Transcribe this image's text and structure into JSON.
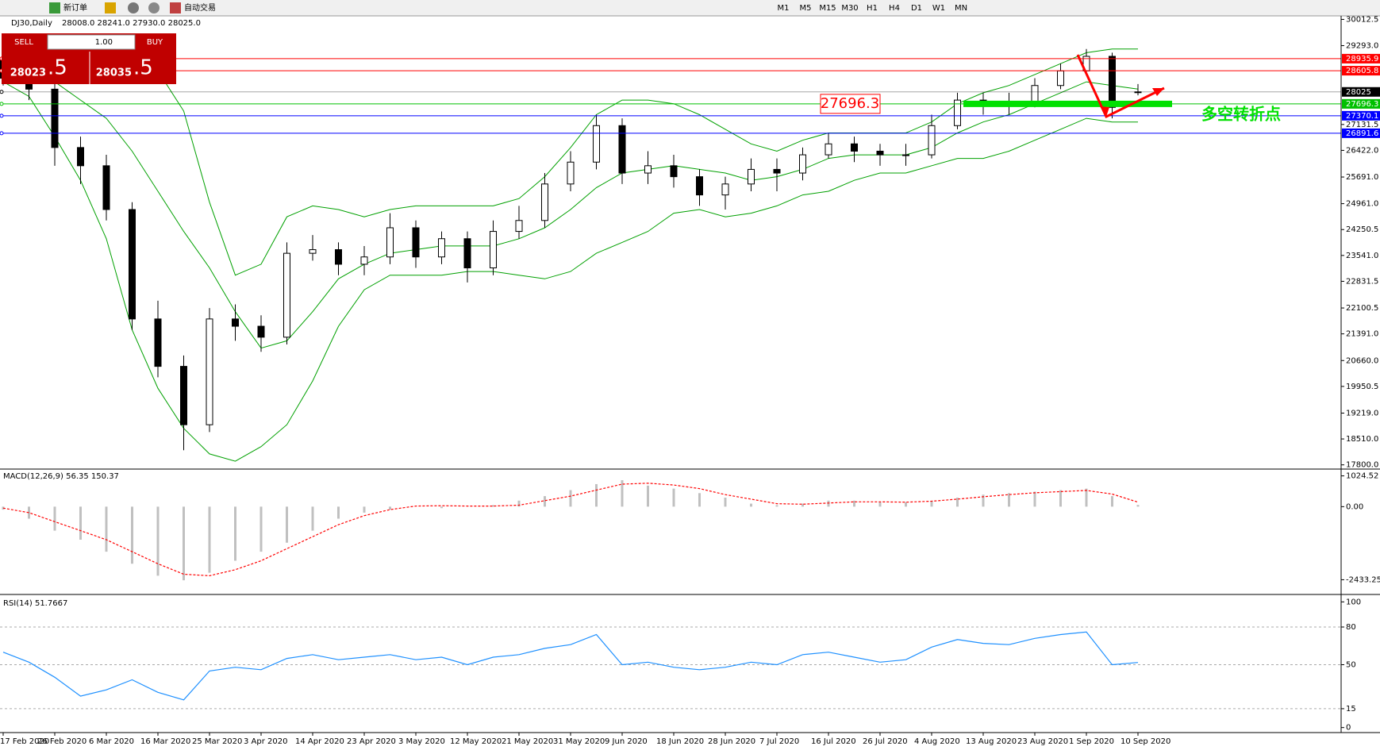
{
  "toolbar": {
    "new_order": "新订单",
    "auto_trading": "自动交易",
    "timeframes": [
      "M1",
      "M5",
      "M15",
      "M30",
      "H1",
      "H4",
      "D1",
      "W1",
      "MN"
    ]
  },
  "trade_panel": {
    "sell": "SELL",
    "buy": "BUY",
    "lots": "1.00",
    "sell_main": "28023",
    "sell_frac": ".5",
    "buy_main": "28035",
    "buy_frac": ".5"
  },
  "chart_data": [
    {
      "type": "candlestick",
      "title": "DJ30,Daily",
      "quote": "28008.0 28241.0 27930.0 28025.0",
      "categories": [
        "17 Feb 2020",
        null,
        "26 Feb 2020",
        null,
        "6 Mar 2020",
        null,
        "16 Mar 2020",
        null,
        "25 Mar 2020",
        null,
        "3 Apr 2020",
        null,
        "14 Apr 2020",
        null,
        "23 Apr 2020",
        null,
        "3 May 2020",
        null,
        "12 May 2020",
        null,
        "21 May 2020",
        null,
        "31 May 2020",
        null,
        "9 Jun 2020",
        null,
        "18 Jun 2020",
        null,
        "28 Jun 2020",
        null,
        "7 Jul 2020",
        null,
        "16 Jul 2020",
        null,
        "26 Jul 2020",
        null,
        "4 Aug 2020",
        null,
        "13 Aug 2020",
        null,
        "23 Aug 2020",
        null,
        "1 Sep 2020",
        null,
        "10 Sep 2020"
      ],
      "open": [
        28900,
        28400,
        28100,
        26500,
        26000,
        24800,
        21800,
        20500,
        18900,
        21800,
        21600,
        21300,
        23600,
        23700,
        23300,
        23500,
        24300,
        23500,
        24000,
        23200,
        24200,
        24500,
        25500,
        26100,
        27100,
        25800,
        26000,
        25700,
        25200,
        25500,
        25900,
        25800,
        26300,
        26600,
        26400,
        26300,
        26300,
        27100,
        27800,
        27700,
        27700,
        28200,
        28600,
        29000,
        28008
      ],
      "high": [
        29100,
        28700,
        28300,
        26800,
        26300,
        25000,
        22300,
        20800,
        22100,
        22200,
        21900,
        23900,
        24100,
        23900,
        23800,
        24700,
        24500,
        24200,
        24200,
        24500,
        24900,
        25800,
        26400,
        27400,
        27300,
        26400,
        26300,
        25900,
        25700,
        26200,
        26200,
        26500,
        26900,
        26800,
        26600,
        26600,
        27400,
        28000,
        28000,
        28000,
        28400,
        28800,
        29200,
        29100,
        28241
      ],
      "low": [
        28200,
        27800,
        26000,
        25500,
        24500,
        21500,
        20200,
        18200,
        18700,
        21200,
        20900,
        21100,
        23400,
        23000,
        23000,
        23300,
        23200,
        23300,
        22800,
        23000,
        24000,
        24300,
        25300,
        25900,
        25500,
        25500,
        25400,
        24900,
        24800,
        25300,
        25300,
        25600,
        26200,
        26100,
        26000,
        26000,
        26200,
        27000,
        27400,
        27400,
        27600,
        28100,
        28500,
        27300,
        27930
      ],
      "close": [
        28400,
        28100,
        26500,
        26000,
        24800,
        21800,
        20500,
        18900,
        21800,
        21600,
        21300,
        23600,
        23700,
        23300,
        23500,
        24300,
        23500,
        24000,
        23200,
        24200,
        24500,
        25500,
        26100,
        27100,
        25800,
        26000,
        25700,
        25200,
        25500,
        25900,
        25800,
        26300,
        26600,
        26400,
        26300,
        26300,
        27100,
        27800,
        27700,
        27700,
        28200,
        28600,
        29000,
        27600,
        28025
      ],
      "bands": {
        "color": "#00a000",
        "upper": [
          29000,
          29200,
          29300,
          29300,
          29300,
          29100,
          28600,
          27500,
          25000,
          23000,
          23300,
          24600,
          24900,
          24800,
          24600,
          24800,
          24900,
          24900,
          24900,
          24900,
          25100,
          25700,
          26500,
          27400,
          27800,
          27800,
          27700,
          27400,
          27000,
          26600,
          26400,
          26700,
          26900,
          26900,
          26900,
          26900,
          27200,
          27700,
          28000,
          28200,
          28500,
          28800,
          29100,
          29200,
          29200
        ],
        "middle": [
          28700,
          28600,
          28300,
          27800,
          27300,
          26400,
          25300,
          24200,
          23200,
          22000,
          21000,
          21200,
          22000,
          22900,
          23300,
          23600,
          23700,
          23800,
          23800,
          23800,
          24000,
          24300,
          24800,
          25400,
          25800,
          25900,
          26000,
          25900,
          25800,
          25600,
          25700,
          25900,
          26200,
          26300,
          26300,
          26300,
          26500,
          26900,
          27200,
          27400,
          27700,
          28000,
          28300,
          28200,
          28100
        ],
        "lower": [
          28300,
          27900,
          26800,
          25600,
          24000,
          21500,
          19900,
          18800,
          18100,
          17900,
          18300,
          18900,
          20100,
          21600,
          22600,
          23000,
          23000,
          23000,
          23100,
          23100,
          23000,
          22900,
          23100,
          23600,
          23900,
          24200,
          24700,
          24800,
          24600,
          24700,
          24900,
          25200,
          25300,
          25600,
          25800,
          25800,
          26000,
          26200,
          26200,
          26400,
          26700,
          27000,
          27300,
          27200,
          27200
        ]
      },
      "hlines": [
        {
          "value": 28935.9,
          "color": "#ff0000"
        },
        {
          "value": 28605.8,
          "color": "#ff0000"
        },
        {
          "value": 28025.0,
          "color": "#000000"
        },
        {
          "value": 27696.3,
          "color": "#00c000"
        },
        {
          "value": 27370.1,
          "color": "#0000ff"
        },
        {
          "value": 26891.6,
          "color": "#0000ff"
        }
      ],
      "price_callout": 27696.3,
      "callout_color": "#ff0000",
      "annotation": "多空转折点",
      "annotation_color": "#00e000",
      "ylim": [
        17728,
        30109
      ],
      "yticks": [
        30012.5,
        {
          "value": 29293.0,
          "label": "29293.0"
        },
        27131.5,
        {
          "value": 26422.0,
          "label": "26422.0"
        },
        {
          "value": 25691.0,
          "label": "25691.0"
        },
        {
          "value": 24961.0,
          "label": "24961.0"
        },
        24250.5,
        {
          "value": 23541.0,
          "label": "23541.0"
        },
        22831.5,
        22100.5,
        {
          "value": 21391.0,
          "label": "21391.0"
        },
        {
          "value": 20660.0,
          "label": "20660.0"
        },
        19950.5,
        {
          "value": 19219.0,
          "label": "19219.0"
        },
        {
          "value": 18510.0,
          "label": "18510.0"
        },
        {
          "value": 17800.0,
          "label": "17800.0"
        }
      ]
    },
    {
      "type": "macd",
      "title": "MACD(12,26,9) 56.35 150.37",
      "histogram_color": "#c0c0c0",
      "signal_color": "#ff0000",
      "histogram": [
        -100,
        -400,
        -800,
        -1100,
        -1500,
        -1900,
        -2300,
        -2450,
        -2200,
        -1800,
        -1500,
        -1200,
        -800,
        -400,
        -200,
        -100,
        0,
        -50,
        0,
        50,
        200,
        350,
        550,
        750,
        880,
        700,
        600,
        450,
        300,
        100,
        50,
        100,
        200,
        200,
        150,
        150,
        200,
        300,
        400,
        450,
        500,
        550,
        600,
        350,
        56.35
      ],
      "signal": [
        -50,
        -200,
        -500,
        -800,
        -1100,
        -1500,
        -1900,
        -2250,
        -2300,
        -2100,
        -1800,
        -1400,
        -1000,
        -600,
        -300,
        -100,
        20,
        30,
        20,
        20,
        50,
        200,
        350,
        550,
        750,
        780,
        720,
        600,
        400,
        250,
        100,
        80,
        120,
        160,
        160,
        150,
        180,
        250,
        330,
        400,
        460,
        500,
        540,
        420,
        150.37
      ],
      "ylim": [
        -2871,
        1172
      ],
      "yticks": [
        1024.52,
        {
          "value": 0,
          "label": "0.00"
        },
        -2433.25
      ]
    },
    {
      "type": "line",
      "title": "RSI(14) 51.7667",
      "color": "#1e90ff",
      "values": [
        60,
        52,
        40,
        25,
        30,
        38,
        28,
        22,
        45,
        48,
        46,
        55,
        58,
        54,
        56,
        58,
        54,
        56,
        50,
        56,
        58,
        63,
        66,
        74,
        50,
        52,
        48,
        46,
        48,
        52,
        50,
        58,
        60,
        56,
        52,
        54,
        64,
        70,
        67,
        66,
        71,
        74,
        76,
        50,
        51.7667
      ],
      "levels": [
        80,
        50,
        15
      ],
      "ylim": [
        -4,
        104
      ],
      "yticks": [
        100,
        80,
        50,
        15,
        0
      ]
    }
  ]
}
